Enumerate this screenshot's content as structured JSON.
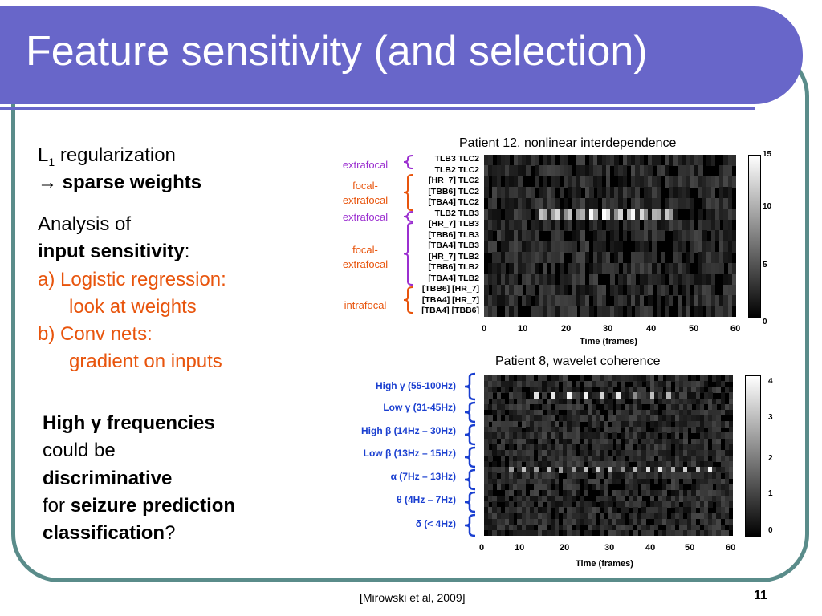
{
  "slide": {
    "title": "Feature sensitivity (and selection)",
    "reg_prefix": "L",
    "reg_sub": "1",
    "reg_suffix": " regularization",
    "arrow": "→ ",
    "sparse": "sparse weights",
    "analysis1": "Analysis of",
    "analysis2": "input sensitivity",
    "analysis2_colon": ":",
    "item_a1": "a) Logistic regression:",
    "item_a2": "look at weights",
    "item_b1": "b) Conv nets:",
    "item_b2": "gradient on inputs",
    "hg1": "High γ frequencies",
    "hg2": "could be",
    "hg3": "discriminative",
    "hg4_pre": "for ",
    "hg4_bold": "seizure prediction",
    "hg5_bold": "classification",
    "hg5_q": "?",
    "citation": "[Mirowski et al, 2009]",
    "page": "11"
  },
  "colors": {
    "title_bar": "#6866c9",
    "frame": "#5a8c8a",
    "orange": "#e8540c",
    "purple": "#9b2fd0",
    "label_blue": "#1a3fd0"
  },
  "chart_data": [
    {
      "type": "heatmap",
      "title": "Patient 12, nonlinear interdependence",
      "xlabel": "Time (frames)",
      "xticks": [
        "0",
        "10",
        "20",
        "30",
        "40",
        "50",
        "60"
      ],
      "xlim": [
        0,
        60
      ],
      "rows": [
        "TLB3 TLC2",
        "TLB2 TLC2",
        "[HR_7] TLC2",
        "[TBB6] TLC2",
        "[TBA4] TLC2",
        "TLB2 TLB3",
        "[HR_7] TLB3",
        "[TBB6] TLB3",
        "[TBA4] TLB3",
        "[HR_7] TLB2",
        "[TBB6] TLB2",
        "[TBA4] TLB2",
        "[TBB6] [HR_7]",
        "[TBA4] [HR_7]",
        "[TBA4] [TBB6]"
      ],
      "groups": [
        {
          "label": "extrafocal",
          "color": "#9b2fd0"
        },
        {
          "label": "focal-\nextrafocal",
          "color": "#e8540c"
        },
        {
          "label": "extrafocal",
          "color": "#9b2fd0"
        },
        {
          "label": "focal-\nextrafocal",
          "color": "#e8540c"
        },
        {
          "label": "intrafocal",
          "color": "#e8540c"
        }
      ],
      "colorbar": {
        "min": 0,
        "max": 15,
        "ticks": [
          "15",
          "10",
          "5",
          "0"
        ]
      }
    },
    {
      "type": "heatmap",
      "title": "Patient 8, wavelet coherence",
      "xlabel": "Time (frames)",
      "xticks": [
        "0",
        "10",
        "20",
        "30",
        "40",
        "50",
        "60"
      ],
      "xlim": [
        0,
        60
      ],
      "bands": [
        "High γ (55-100Hz)",
        "Low γ (31-45Hz)",
        "High β (14Hz – 30Hz)",
        "Low β (13Hz – 15Hz)",
        "α (7Hz – 13Hz)",
        "θ (4Hz – 7Hz)",
        "δ (< 4Hz)"
      ],
      "colorbar": {
        "min": 0,
        "max": 4,
        "ticks": [
          "4",
          "3",
          "2",
          "1",
          "0"
        ]
      }
    }
  ]
}
